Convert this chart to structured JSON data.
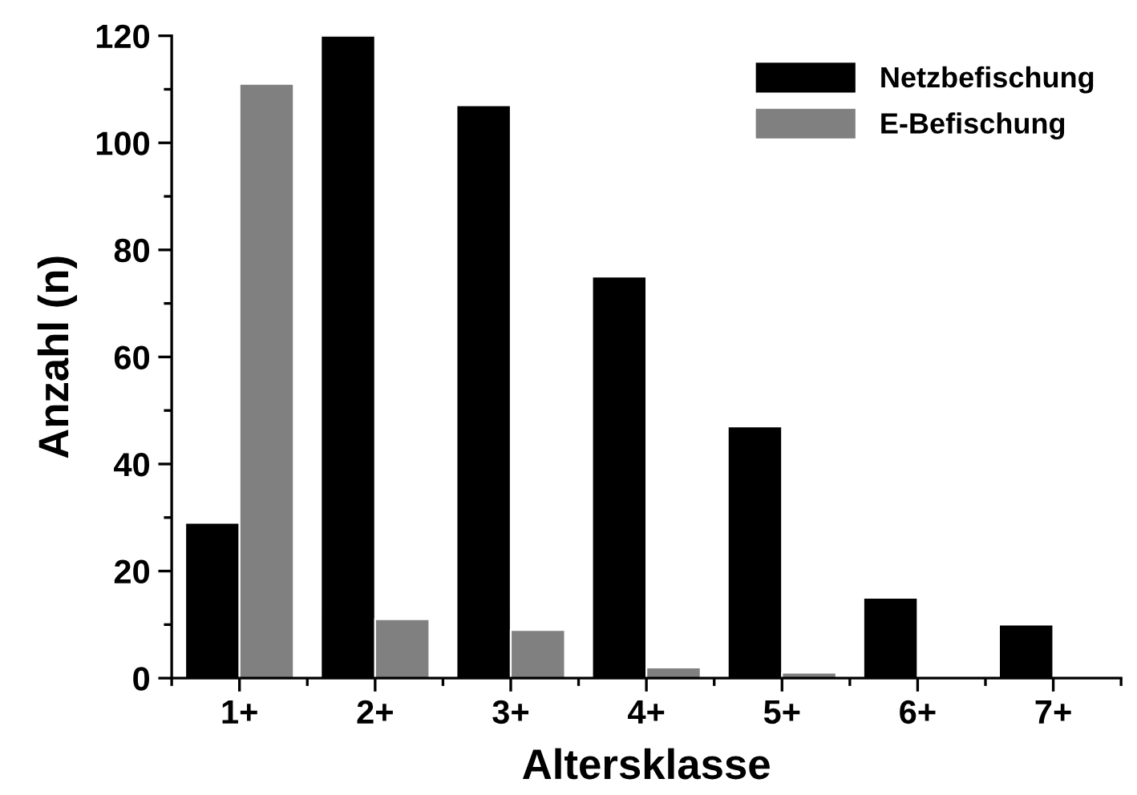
{
  "chart_data": {
    "type": "bar",
    "xlabel": "Altersklasse",
    "ylabel": "Anzahl (n)",
    "categories": [
      "1+",
      "2+",
      "3+",
      "4+",
      "5+",
      "6+",
      "7+"
    ],
    "series": [
      {
        "name": "Netzbefischung",
        "color": "#000000",
        "values": [
          29,
          120,
          107,
          75,
          47,
          15,
          10
        ]
      },
      {
        "name": "E-Befischung",
        "color": "#808080",
        "values": [
          111,
          11,
          9,
          2,
          1,
          null,
          null
        ]
      }
    ],
    "ylim": [
      0,
      120
    ],
    "yticks": [
      0,
      20,
      40,
      60,
      80,
      100,
      120
    ],
    "grid": false,
    "legend": "top right"
  }
}
